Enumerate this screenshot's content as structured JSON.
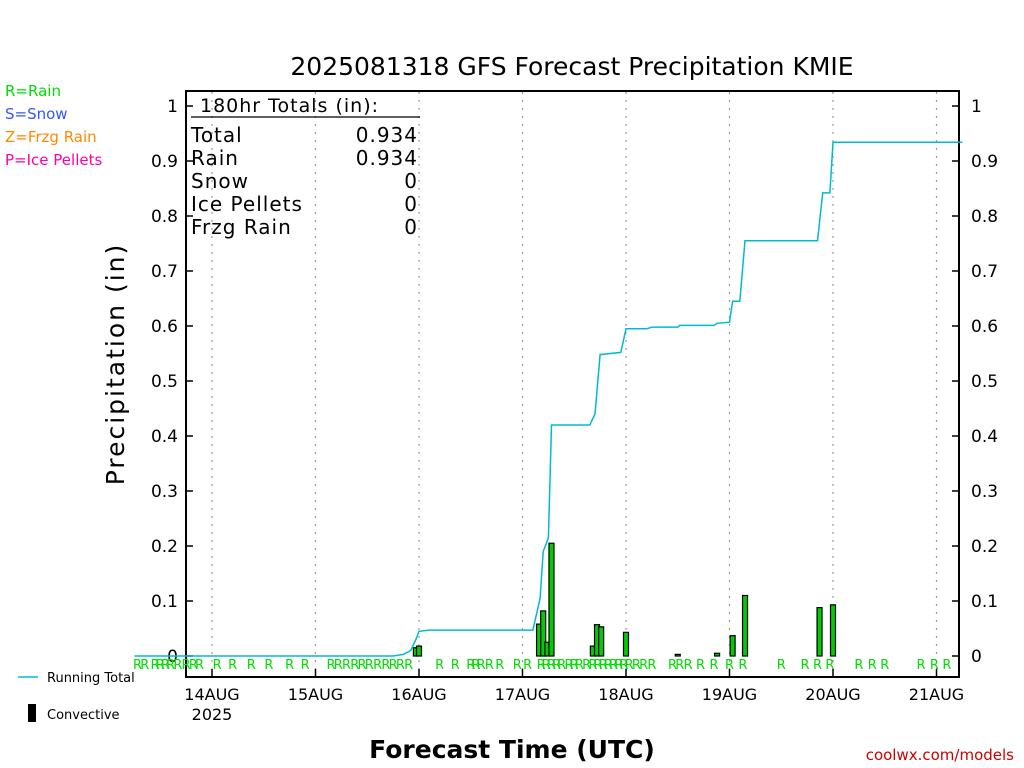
{
  "chart_data": {
    "type": "bar",
    "title": "2025081318 GFS Forecast Precipitation KMIE",
    "xlabel": "Forecast Time (UTC)",
    "ylabel": "Precipitation (in)",
    "ylim": [
      0,
      1
    ],
    "y_ticks": [
      "0",
      "0.1",
      "0.2",
      "0.3",
      "0.4",
      "0.5",
      "0.6",
      "0.7",
      "0.8",
      "0.9",
      "1"
    ],
    "x_ticks": [
      "14AUG",
      "15AUG",
      "16AUG",
      "17AUG",
      "18AUG",
      "19AUG",
      "20AUG",
      "21AUG"
    ],
    "x_year": "2025",
    "grid": "vertical dotted lines at each day",
    "legend_left": [
      {
        "label": "R=Rain",
        "color": "#00dd00"
      },
      {
        "label": "S=Snow",
        "color": "#3355ff"
      },
      {
        "label": "Z=Frzg Rain",
        "color": "#ff8800"
      },
      {
        "label": "P=Ice Pellets",
        "color": "#ff00aa"
      }
    ],
    "legend_bottom": [
      {
        "label": "Running Total",
        "color": "#00bbcc"
      },
      {
        "label": "Convective",
        "color": "#000000"
      }
    ],
    "totals_box": {
      "header": "180hr Totals (in):",
      "rows": [
        {
          "label": "Total",
          "value": "0.934"
        },
        {
          "label": "Rain",
          "value": "0.934"
        },
        {
          "label": "Snow",
          "value": "0"
        },
        {
          "label": "Ice Pellets",
          "value": "0"
        },
        {
          "label": "Frzg Rain",
          "value": "0"
        }
      ]
    },
    "series": [
      {
        "name": "Running Total",
        "color": "#00bbcc",
        "points": [
          [
            -0.75,
            0.0
          ],
          [
            1.75,
            0.0
          ],
          [
            1.85,
            0.003
          ],
          [
            1.92,
            0.01
          ],
          [
            1.97,
            0.03
          ],
          [
            2.0,
            0.045
          ],
          [
            2.1,
            0.047
          ],
          [
            3.1,
            0.047
          ],
          [
            3.17,
            0.105
          ],
          [
            3.2,
            0.19
          ],
          [
            3.25,
            0.215
          ],
          [
            3.28,
            0.42
          ],
          [
            3.65,
            0.42
          ],
          [
            3.7,
            0.44
          ],
          [
            3.75,
            0.548
          ],
          [
            3.95,
            0.552
          ],
          [
            4.0,
            0.595
          ],
          [
            4.2,
            0.595
          ],
          [
            4.25,
            0.598
          ],
          [
            4.5,
            0.598
          ],
          [
            4.52,
            0.601
          ],
          [
            4.85,
            0.601
          ],
          [
            4.88,
            0.605
          ],
          [
            5.0,
            0.607
          ],
          [
            5.03,
            0.645
          ],
          [
            5.1,
            0.645
          ],
          [
            5.15,
            0.755
          ],
          [
            5.85,
            0.755
          ],
          [
            5.9,
            0.842
          ],
          [
            5.97,
            0.842
          ],
          [
            6.0,
            0.934
          ],
          [
            7.25,
            0.934
          ]
        ]
      },
      {
        "name": "Precipitation",
        "color": "#003300",
        "bars": [
          [
            1.97,
            0.015
          ],
          [
            2.0,
            0.018
          ],
          [
            3.16,
            0.058
          ],
          [
            3.2,
            0.082
          ],
          [
            3.24,
            0.025
          ],
          [
            3.28,
            0.205
          ],
          [
            3.68,
            0.018
          ],
          [
            3.72,
            0.057
          ],
          [
            3.76,
            0.053
          ],
          [
            4.0,
            0.043
          ],
          [
            4.5,
            0.003
          ],
          [
            4.88,
            0.005
          ],
          [
            5.03,
            0.037
          ],
          [
            5.15,
            0.11
          ],
          [
            5.87,
            0.088
          ],
          [
            6.0,
            0.093
          ]
        ]
      }
    ],
    "ptype_labels": [
      [
        -0.72,
        "R"
      ],
      [
        -0.65,
        "R"
      ],
      [
        -0.55,
        "R"
      ],
      [
        -0.5,
        "R"
      ],
      [
        -0.45,
        "R"
      ],
      [
        -0.4,
        "R"
      ],
      [
        -0.33,
        "R"
      ],
      [
        -0.25,
        "R"
      ],
      [
        -0.18,
        "R"
      ],
      [
        -0.12,
        "R"
      ],
      [
        0.05,
        "R"
      ],
      [
        0.2,
        "R"
      ],
      [
        0.38,
        "R"
      ],
      [
        0.55,
        "R"
      ],
      [
        0.75,
        "R"
      ],
      [
        0.9,
        "R"
      ],
      [
        1.15,
        "R"
      ],
      [
        1.22,
        "R"
      ],
      [
        1.3,
        "R"
      ],
      [
        1.38,
        "R"
      ],
      [
        1.45,
        "R"
      ],
      [
        1.52,
        "R"
      ],
      [
        1.6,
        "R"
      ],
      [
        1.68,
        "R"
      ],
      [
        1.75,
        "R"
      ],
      [
        1.82,
        "R"
      ],
      [
        1.9,
        "R"
      ],
      [
        2.2,
        "R"
      ],
      [
        2.35,
        "R"
      ],
      [
        2.5,
        "R"
      ],
      [
        2.55,
        "R"
      ],
      [
        2.6,
        "R"
      ],
      [
        2.68,
        "R"
      ],
      [
        2.78,
        "R"
      ],
      [
        2.95,
        "R"
      ],
      [
        3.05,
        "R"
      ],
      [
        3.18,
        "R"
      ],
      [
        3.23,
        "R"
      ],
      [
        3.28,
        "R"
      ],
      [
        3.33,
        "R"
      ],
      [
        3.38,
        "R"
      ],
      [
        3.45,
        "R"
      ],
      [
        3.5,
        "R"
      ],
      [
        3.55,
        "R"
      ],
      [
        3.62,
        "R"
      ],
      [
        3.68,
        "R"
      ],
      [
        3.73,
        "R"
      ],
      [
        3.78,
        "R"
      ],
      [
        3.83,
        "R"
      ],
      [
        3.88,
        "R"
      ],
      [
        3.93,
        "R"
      ],
      [
        3.98,
        "R"
      ],
      [
        4.03,
        "R"
      ],
      [
        4.1,
        "R"
      ],
      [
        4.17,
        "R"
      ],
      [
        4.25,
        "R"
      ],
      [
        4.45,
        "R"
      ],
      [
        4.52,
        "R"
      ],
      [
        4.6,
        "R"
      ],
      [
        4.72,
        "R"
      ],
      [
        4.85,
        "R"
      ],
      [
        5.0,
        "R"
      ],
      [
        5.13,
        "R"
      ],
      [
        5.5,
        "R"
      ],
      [
        5.73,
        "R"
      ],
      [
        5.85,
        "R"
      ],
      [
        5.97,
        "R"
      ],
      [
        6.25,
        "R"
      ],
      [
        6.38,
        "R"
      ],
      [
        6.5,
        "R"
      ],
      [
        6.85,
        "R"
      ],
      [
        6.98,
        "R"
      ],
      [
        7.1,
        "R"
      ]
    ]
  },
  "credit": "coolwx.com/models"
}
